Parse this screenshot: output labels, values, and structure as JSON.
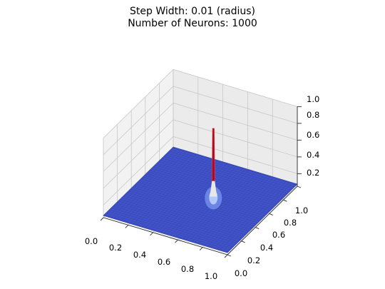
{
  "chart_data": {
    "type": "surface3d",
    "title_lines": [
      "Step Width: 0.01 (radius)",
      "Number of Neurons: 1000"
    ],
    "x_ticks": [
      "0.0",
      "0.2",
      "0.4",
      "0.6",
      "0.8",
      "1.0"
    ],
    "y_ticks": [
      "0.0",
      "0.2",
      "0.4",
      "0.6",
      "0.8",
      "1.0"
    ],
    "z_ticks": [
      "0.2",
      "0.4",
      "0.6",
      "0.8",
      "1.0"
    ],
    "xlim": [
      0,
      1
    ],
    "ylim": [
      0,
      1
    ],
    "zlim": [
      0.05,
      1.0
    ],
    "colormap": "coolwarm",
    "colormap_low": "#3b4cc0",
    "colormap_mid": "#dddddd",
    "colormap_high": "#b40426",
    "surface_base_value": 0.0,
    "peak": {
      "x": 0.56,
      "y": 0.58,
      "value": 0.89
    },
    "grid": true
  }
}
